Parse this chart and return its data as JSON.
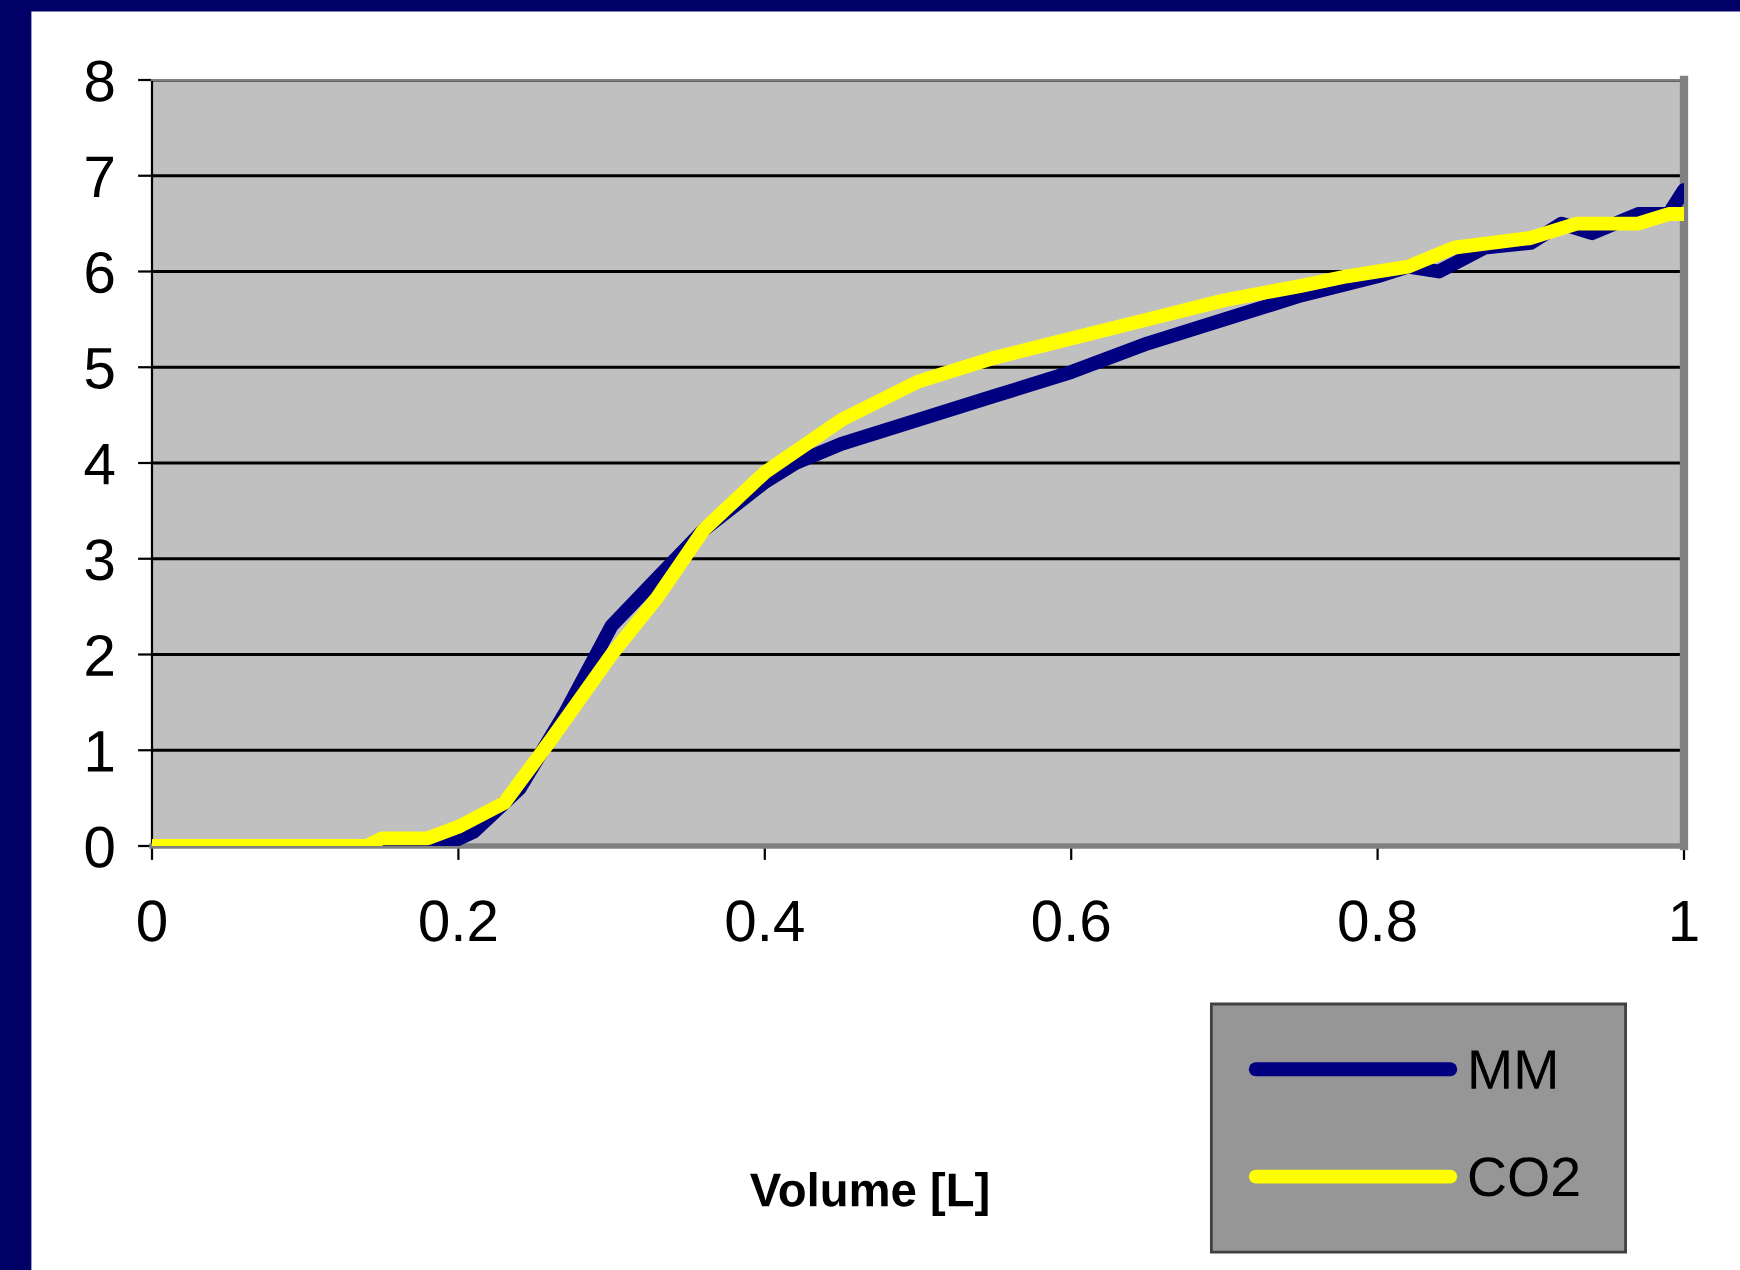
{
  "chart_data": {
    "type": "line",
    "xlabel": "Volume [L]",
    "xlim": [
      0,
      1
    ],
    "xticks": [
      0,
      0.2,
      0.4,
      0.6,
      0.8,
      1
    ],
    "ylim": [
      0,
      8
    ],
    "yticks": [
      0,
      1,
      2,
      3,
      4,
      5,
      6,
      7,
      8
    ],
    "grid": "y",
    "legend": "bottom right",
    "marker": "none",
    "line_style": "solid",
    "series": [
      {
        "name": "MM",
        "color": "#000080",
        "x": [
          0,
          0.19,
          0.21,
          0.24,
          0.27,
          0.3,
          0.33,
          0.36,
          0.4,
          0.42,
          0.45,
          0.5,
          0.55,
          0.6,
          0.65,
          0.7,
          0.75,
          0.8,
          0.82,
          0.84,
          0.87,
          0.9,
          0.92,
          0.94,
          0.97,
          0.99,
          1.0
        ],
        "values": [
          0,
          0,
          0.15,
          0.6,
          1.4,
          2.3,
          2.8,
          3.3,
          3.8,
          4.0,
          4.2,
          4.45,
          4.7,
          4.95,
          5.25,
          5.5,
          5.75,
          5.95,
          6.05,
          6.0,
          6.25,
          6.3,
          6.5,
          6.4,
          6.6,
          6.6,
          6.85
        ]
      },
      {
        "name": "CO2",
        "color": "#ffff00",
        "x": [
          0,
          0.14,
          0.15,
          0.18,
          0.2,
          0.23,
          0.26,
          0.3,
          0.33,
          0.36,
          0.4,
          0.45,
          0.5,
          0.55,
          0.6,
          0.65,
          0.7,
          0.75,
          0.78,
          0.82,
          0.85,
          0.9,
          0.93,
          0.97,
          0.99,
          1.0
        ],
        "values": [
          0,
          0,
          0.08,
          0.08,
          0.2,
          0.45,
          1.1,
          2.0,
          2.6,
          3.3,
          3.9,
          4.45,
          4.85,
          5.1,
          5.3,
          5.5,
          5.7,
          5.85,
          5.95,
          6.05,
          6.25,
          6.35,
          6.5,
          6.5,
          6.6,
          6.6
        ]
      }
    ]
  }
}
